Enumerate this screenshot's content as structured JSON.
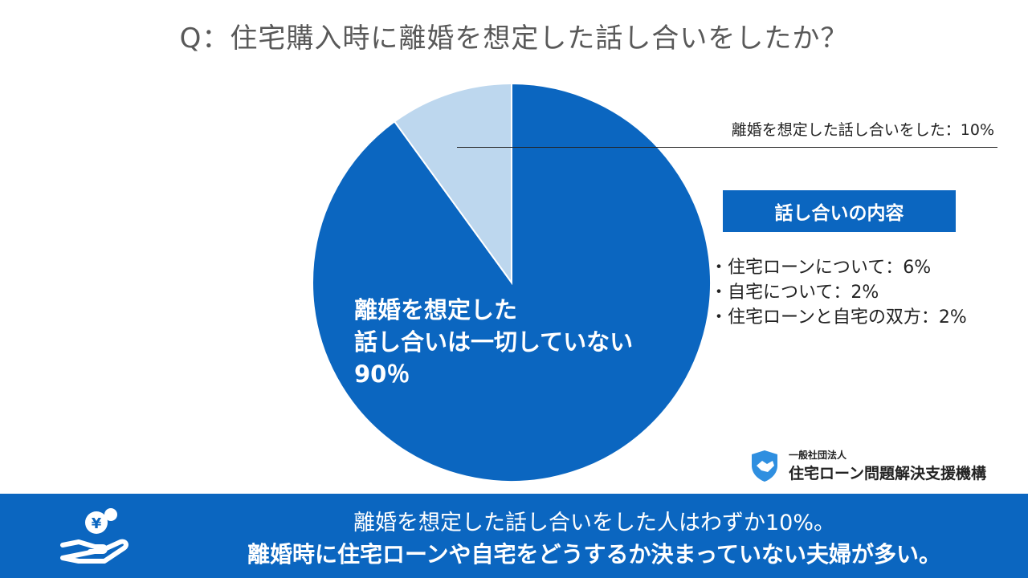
{
  "title": "Q：住宅購入時に離婚を想定した話し合いをしたか？",
  "chart_data": {
    "type": "pie",
    "slices": [
      {
        "label": "離婚を想定した話し合いは一切していない",
        "value": 90,
        "color": "#0b66c0"
      },
      {
        "label": "離婚を想定した話し合いをした",
        "value": 10,
        "color": "#bdd7ee"
      }
    ]
  },
  "labels": {
    "small_slice": "離婚を想定した話し合いをした：10%",
    "big_slice_line1": "離婚を想定した",
    "big_slice_line2": "話し合いは一切していない",
    "big_slice_line3": "90％"
  },
  "details": {
    "header": "話し合いの内容",
    "items": [
      "・住宅ローンについて：6%",
      "・自宅について：2%",
      "・住宅ローンと自宅の双方：2%"
    ]
  },
  "logo": {
    "sub": "一般社団法人",
    "main": "住宅ローン問題解決支援機構"
  },
  "banner": {
    "line1": "離婚を想定した話し合いをした人はわずか10%。",
    "line2": "離婚時に住宅ローンや自宅をどうするか決まっていない夫婦が多い。"
  },
  "colors": {
    "accent": "#0b66c0",
    "light": "#bdd7ee",
    "title": "#595959"
  }
}
